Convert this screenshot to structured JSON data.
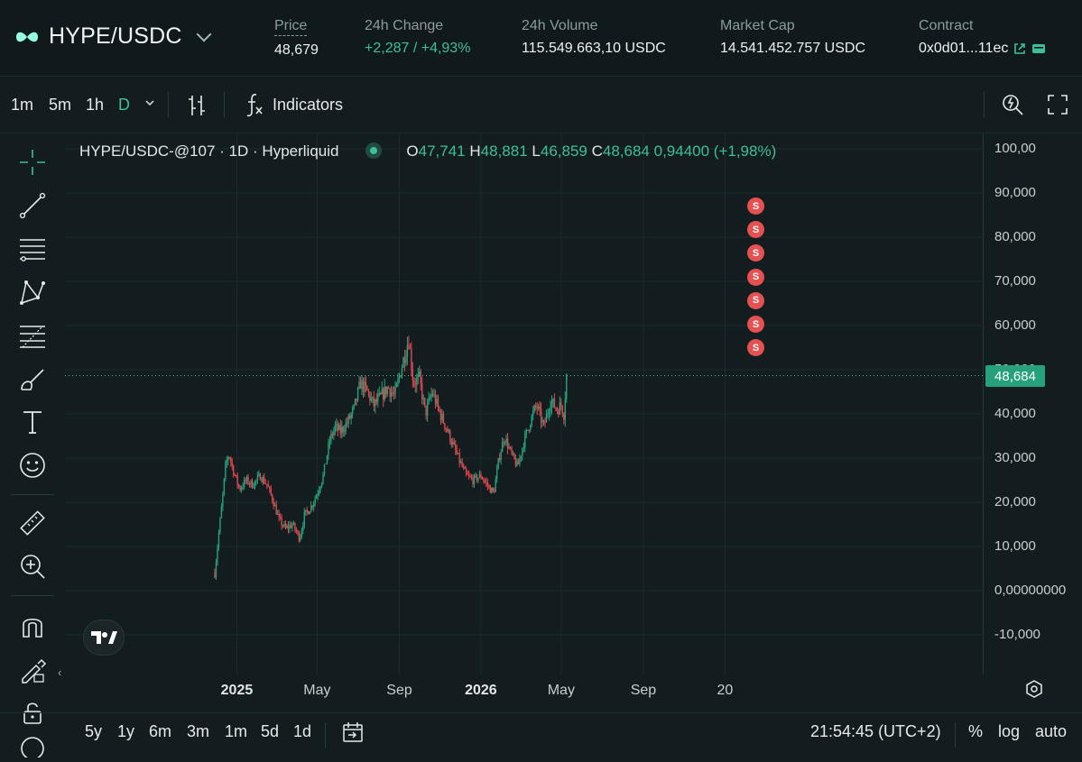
{
  "header": {
    "pair": "HYPE/USDC",
    "price_label": "Price",
    "price_value": "48,679",
    "change_label": "24h Change",
    "change_value": "+2,287 / +4,93%",
    "volume_label": "24h Volume",
    "volume_value": "115.549.663,10 USDC",
    "mcap_label": "Market Cap",
    "mcap_value": "14.541.452.757 USDC",
    "contract_label": "Contract",
    "contract_value": "0x0d01...11ec"
  },
  "toolbar": {
    "intervals": [
      "1m",
      "5m",
      "1h",
      "D"
    ],
    "active_interval": "D",
    "indicators_label": "Indicators"
  },
  "legend": {
    "title": "HYPE/USDC-@107 · 1D · Hyperliquid",
    "o_label": "O",
    "o": "47,741",
    "h_label": "H",
    "h": "48,881",
    "l_label": "L",
    "l": "46,859",
    "c_label": "C",
    "c": "48,684",
    "change": "0,94400 (+1,98%)"
  },
  "yaxis_ticks": [
    "100,00",
    "90,000",
    "80,000",
    "70,000",
    "60,000",
    "50,000",
    "40,000",
    "30,000",
    "20,000",
    "10,000",
    "0,00000000",
    "-10,000"
  ],
  "current_price_tag": "48,684",
  "xaxis_ticks": [
    {
      "label": "2025",
      "bold": true
    },
    {
      "label": "May",
      "bold": false
    },
    {
      "label": "Sep",
      "bold": false
    },
    {
      "label": "2026",
      "bold": true
    },
    {
      "label": "May",
      "bold": false
    },
    {
      "label": "Sep",
      "bold": false
    },
    {
      "label": "20",
      "bold": false
    }
  ],
  "signal_label": "S",
  "bottom": {
    "ranges": [
      "5y",
      "1y",
      "6m",
      "3m",
      "1m",
      "5d",
      "1d"
    ],
    "time": "21:54:45 (UTC+2)",
    "pct": "%",
    "log": "log",
    "auto": "auto"
  },
  "colors": {
    "up": "#26a17b",
    "down": "#e0474f",
    "accent": "#3fbf96"
  },
  "chart_data": {
    "type": "candlestick",
    "title": "HYPE/USDC-@107 · 1D · Hyperliquid",
    "ylim": [
      -15,
      100
    ],
    "x_range": [
      "2024-11-29",
      "2026-05-20"
    ],
    "series": [
      {
        "name": "HYPE/USDC",
        "points": [
          {
            "date": "2024-11-29",
            "value": 4
          },
          {
            "date": "2024-12-05",
            "value": 13
          },
          {
            "date": "2024-12-10",
            "value": 20
          },
          {
            "date": "2024-12-15",
            "value": 28
          },
          {
            "date": "2024-12-20",
            "value": 31
          },
          {
            "date": "2024-12-27",
            "value": 27
          },
          {
            "date": "2025-01-05",
            "value": 23
          },
          {
            "date": "2025-01-15",
            "value": 25
          },
          {
            "date": "2025-01-25",
            "value": 24
          },
          {
            "date": "2025-02-05",
            "value": 26
          },
          {
            "date": "2025-02-15",
            "value": 24
          },
          {
            "date": "2025-02-25",
            "value": 20
          },
          {
            "date": "2025-03-05",
            "value": 16
          },
          {
            "date": "2025-03-15",
            "value": 14
          },
          {
            "date": "2025-03-25",
            "value": 15
          },
          {
            "date": "2025-04-05",
            "value": 12
          },
          {
            "date": "2025-04-12",
            "value": 17
          },
          {
            "date": "2025-04-22",
            "value": 19
          },
          {
            "date": "2025-05-01",
            "value": 22
          },
          {
            "date": "2025-05-10",
            "value": 26
          },
          {
            "date": "2025-05-20",
            "value": 34
          },
          {
            "date": "2025-05-28",
            "value": 37
          },
          {
            "date": "2025-06-05",
            "value": 36
          },
          {
            "date": "2025-06-15",
            "value": 38
          },
          {
            "date": "2025-06-25",
            "value": 41
          },
          {
            "date": "2025-07-05",
            "value": 47
          },
          {
            "date": "2025-07-15",
            "value": 45
          },
          {
            "date": "2025-07-25",
            "value": 42
          },
          {
            "date": "2025-08-05",
            "value": 44
          },
          {
            "date": "2025-08-15",
            "value": 46
          },
          {
            "date": "2025-08-25",
            "value": 44
          },
          {
            "date": "2025-09-05",
            "value": 51
          },
          {
            "date": "2025-09-15",
            "value": 57
          },
          {
            "date": "2025-09-22",
            "value": 47
          },
          {
            "date": "2025-10-01",
            "value": 48
          },
          {
            "date": "2025-10-10",
            "value": 40
          },
          {
            "date": "2025-10-20",
            "value": 45
          },
          {
            "date": "2025-11-01",
            "value": 40
          },
          {
            "date": "2025-11-10",
            "value": 37
          },
          {
            "date": "2025-11-20",
            "value": 33
          },
          {
            "date": "2025-12-01",
            "value": 29
          },
          {
            "date": "2025-12-10",
            "value": 26
          },
          {
            "date": "2025-12-20",
            "value": 25
          },
          {
            "date": "2026-01-01",
            "value": 26
          },
          {
            "date": "2026-01-10",
            "value": 24
          },
          {
            "date": "2026-01-20",
            "value": 22
          },
          {
            "date": "2026-01-28",
            "value": 30
          },
          {
            "date": "2026-02-05",
            "value": 35
          },
          {
            "date": "2026-02-15",
            "value": 31
          },
          {
            "date": "2026-02-25",
            "value": 28
          },
          {
            "date": "2026-03-05",
            "value": 33
          },
          {
            "date": "2026-03-15",
            "value": 38
          },
          {
            "date": "2026-03-25",
            "value": 42
          },
          {
            "date": "2026-04-05",
            "value": 37
          },
          {
            "date": "2026-04-15",
            "value": 43
          },
          {
            "date": "2026-04-25",
            "value": 41
          },
          {
            "date": "2026-05-01",
            "value": 42
          },
          {
            "date": "2026-05-05",
            "value": 40
          },
          {
            "date": "2026-05-09",
            "value": 48.684
          }
        ]
      }
    ],
    "last_close": 48.684,
    "sell_signals": 7
  }
}
